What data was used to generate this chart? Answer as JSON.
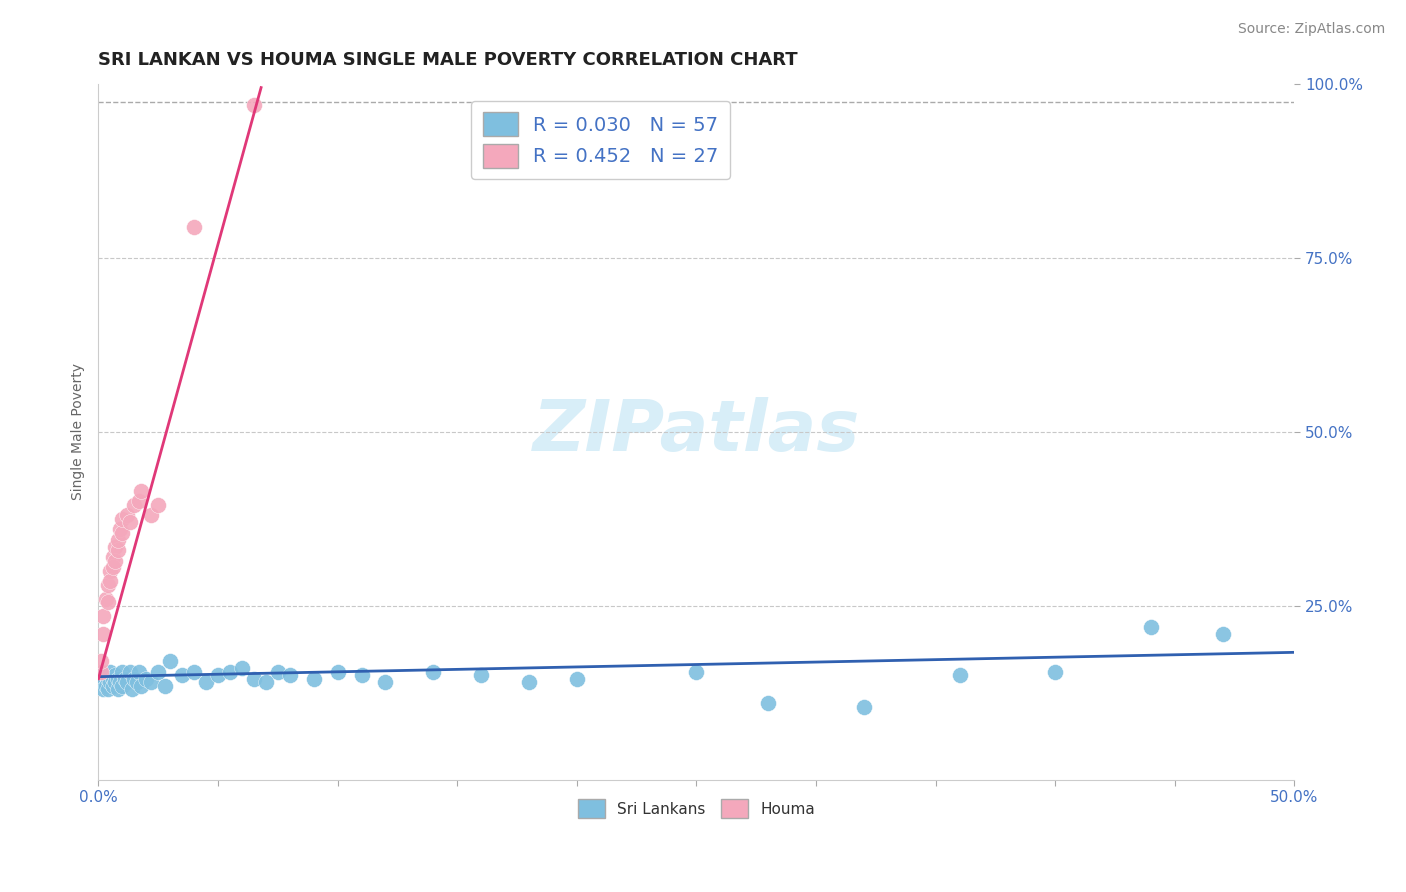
{
  "title": "SRI LANKAN VS HOUMA SINGLE MALE POVERTY CORRELATION CHART",
  "source": "Source: ZipAtlas.com",
  "ylabel": "Single Male Poverty",
  "xlim": [
    0.0,
    0.5
  ],
  "ylim": [
    0.0,
    1.0
  ],
  "legend_entries": [
    {
      "label": "R = 0.030   N = 57",
      "color": "#aec6e8"
    },
    {
      "label": "R = 0.452   N = 27",
      "color": "#f4b8c1"
    }
  ],
  "watermark": "ZIPatlas",
  "background_color": "#ffffff",
  "grid_color": "#c8c8c8",
  "sri_lankans_color": "#7fbfdf",
  "houma_color": "#f4a8bc",
  "sri_lankans_line_color": "#3060b0",
  "houma_line_color": "#e03878",
  "sri_lankans": {
    "x": [
      0.001,
      0.001,
      0.002,
      0.002,
      0.003,
      0.003,
      0.004,
      0.004,
      0.005,
      0.005,
      0.006,
      0.006,
      0.007,
      0.007,
      0.008,
      0.008,
      0.009,
      0.01,
      0.01,
      0.011,
      0.012,
      0.013,
      0.014,
      0.015,
      0.016,
      0.017,
      0.018,
      0.02,
      0.022,
      0.025,
      0.028,
      0.03,
      0.035,
      0.04,
      0.045,
      0.05,
      0.055,
      0.06,
      0.065,
      0.07,
      0.075,
      0.08,
      0.09,
      0.1,
      0.11,
      0.12,
      0.14,
      0.16,
      0.18,
      0.2,
      0.25,
      0.28,
      0.32,
      0.36,
      0.4,
      0.44,
      0.47
    ],
    "y": [
      0.155,
      0.14,
      0.145,
      0.13,
      0.15,
      0.135,
      0.145,
      0.13,
      0.155,
      0.14,
      0.145,
      0.135,
      0.15,
      0.14,
      0.145,
      0.13,
      0.14,
      0.155,
      0.135,
      0.145,
      0.14,
      0.155,
      0.13,
      0.145,
      0.14,
      0.155,
      0.135,
      0.145,
      0.14,
      0.155,
      0.135,
      0.17,
      0.15,
      0.155,
      0.14,
      0.15,
      0.155,
      0.16,
      0.145,
      0.14,
      0.155,
      0.15,
      0.145,
      0.155,
      0.15,
      0.14,
      0.155,
      0.15,
      0.14,
      0.145,
      0.155,
      0.11,
      0.105,
      0.15,
      0.155,
      0.22,
      0.21
    ]
  },
  "houma": {
    "x": [
      0.001,
      0.001,
      0.002,
      0.002,
      0.003,
      0.004,
      0.004,
      0.005,
      0.005,
      0.006,
      0.006,
      0.007,
      0.007,
      0.008,
      0.008,
      0.009,
      0.01,
      0.01,
      0.012,
      0.013,
      0.015,
      0.017,
      0.018,
      0.022,
      0.025,
      0.04,
      0.065
    ],
    "y": [
      0.155,
      0.17,
      0.21,
      0.235,
      0.26,
      0.255,
      0.28,
      0.3,
      0.285,
      0.32,
      0.305,
      0.335,
      0.315,
      0.33,
      0.345,
      0.36,
      0.355,
      0.375,
      0.38,
      0.37,
      0.395,
      0.4,
      0.415,
      0.38,
      0.395,
      0.795,
      0.97
    ]
  },
  "title_fontsize": 13,
  "axis_label_fontsize": 10,
  "tick_fontsize": 11,
  "legend_fontsize": 14,
  "watermark_fontsize": 52,
  "watermark_color": "#d8eef8",
  "title_color": "#222222",
  "tick_color": "#4472c4",
  "source_color": "#888888",
  "source_fontsize": 10,
  "houma_line_intercept": 0.145,
  "houma_line_slope": 12.5,
  "sri_line_intercept": 0.148,
  "sri_line_slope": 0.07
}
